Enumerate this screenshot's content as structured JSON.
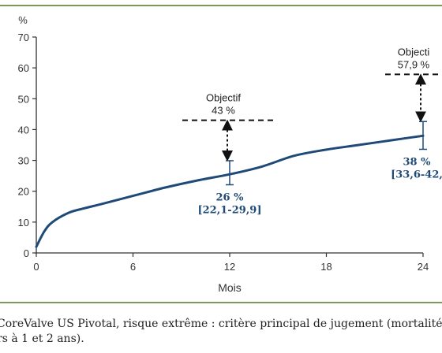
{
  "chart_data": {
    "type": "line",
    "ylabel": "%",
    "xlabel": "Mois",
    "xlim": [
      0,
      24
    ],
    "ylim": [
      0,
      70
    ],
    "xticks": [
      0,
      6,
      12,
      18,
      24
    ],
    "yticks": [
      0,
      10,
      20,
      30,
      40,
      50,
      60,
      70
    ],
    "series": [
      {
        "x": [
          0,
          0.5,
          1,
          2,
          3,
          4,
          6,
          8,
          10,
          12,
          14,
          16,
          18,
          20,
          22,
          24
        ],
        "y": [
          2,
          7,
          10,
          13,
          14.5,
          15.8,
          18.5,
          21.2,
          23.5,
          25.5,
          28,
          31.5,
          33.5,
          35,
          36.5,
          38
        ]
      }
    ],
    "points": [
      {
        "x": 12,
        "y": 26,
        "ci_low": 22.1,
        "ci_high": 29.9,
        "label": "26 %",
        "ci_label": "[22,1-29,9]",
        "objective": 43,
        "objective_label_1": "Objectif",
        "objective_label_2": "43 %"
      },
      {
        "x": 24,
        "y": 38,
        "ci_low": 33.6,
        "ci_high": 42.6,
        "label": "38 %",
        "ci_label": "[33,6-42,",
        "objective": 57.9,
        "objective_label_1": "Objecti",
        "objective_label_2": "57,9 %"
      }
    ]
  },
  "caption": {
    "line1": "CoreValve US Pivotal, risque extrême : critère principal de jugement (mortalité",
    "line2": "rs à 1 et 2 ans)."
  },
  "colors": {
    "frame": "#7a9a56",
    "curve": "#1f4a78",
    "axis": "#333333"
  }
}
